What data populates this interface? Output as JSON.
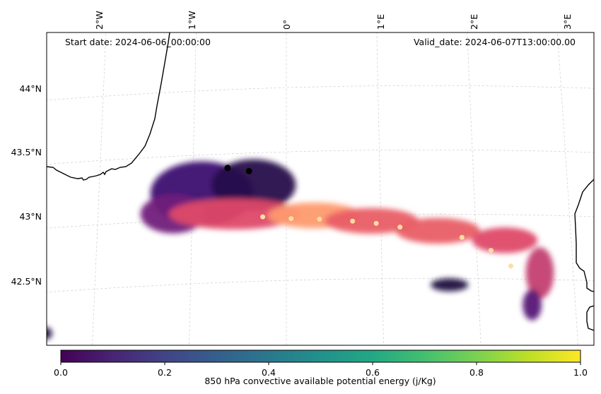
{
  "chart_data": {
    "type": "heatmap",
    "title": "",
    "annotations": {
      "start_date": "Start date: 2024-06-06_00:00:00",
      "valid_date": "Valid_date: 2024-06-07T13:00:00.00"
    },
    "x_ticks": [
      {
        "value": -2,
        "label": "2°W"
      },
      {
        "value": -1,
        "label": "1°W"
      },
      {
        "value": 0,
        "label": "0°"
      },
      {
        "value": 1,
        "label": "1°E"
      },
      {
        "value": 2,
        "label": "2°E"
      },
      {
        "value": 3,
        "label": "3°E"
      }
    ],
    "y_ticks": [
      {
        "value": 44.0,
        "label": "44°N"
      },
      {
        "value": 43.5,
        "label": "43.5°N"
      },
      {
        "value": 43.0,
        "label": "43°N"
      },
      {
        "value": 42.5,
        "label": "42.5°N"
      }
    ],
    "lon_range": [
      -2.6,
      3.2
    ],
    "lat_range": [
      42.0,
      44.4
    ],
    "grid": true,
    "colorbar": {
      "label": "850 hPa convective available potential energy (j/Kg)",
      "ticks": [
        "0.0",
        "0.2",
        "0.4",
        "0.6",
        "0.8",
        "1.0"
      ],
      "range": [
        0.0,
        1.0
      ],
      "colormap": "viridis",
      "placement": "bottom"
    },
    "field_colormap": "magma_r",
    "markers": [
      {
        "lon": -0.63,
        "lat": 43.39,
        "color": "#000000"
      },
      {
        "lon": -0.4,
        "lat": 43.36,
        "color": "#000000"
      }
    ],
    "cape_field_blobs": [
      {
        "lon": -0.9,
        "lat": 43.2,
        "rx": 0.55,
        "ry": 0.25,
        "value": 0.85
      },
      {
        "lon": -0.35,
        "lat": 43.25,
        "rx": 0.45,
        "ry": 0.2,
        "value": 0.9
      },
      {
        "lon": -1.2,
        "lat": 43.05,
        "rx": 0.35,
        "ry": 0.15,
        "value": 0.75
      },
      {
        "lon": -0.55,
        "lat": 43.03,
        "rx": 0.7,
        "ry": 0.12,
        "value": 0.55
      },
      {
        "lon": 0.3,
        "lat": 43.0,
        "rx": 0.5,
        "ry": 0.1,
        "value": 0.35
      },
      {
        "lon": 0.9,
        "lat": 42.95,
        "rx": 0.5,
        "ry": 0.1,
        "value": 0.5
      },
      {
        "lon": 1.6,
        "lat": 42.87,
        "rx": 0.45,
        "ry": 0.1,
        "value": 0.5
      },
      {
        "lon": 2.3,
        "lat": 42.8,
        "rx": 0.35,
        "ry": 0.1,
        "value": 0.55
      },
      {
        "lon": 2.65,
        "lat": 42.55,
        "rx": 0.15,
        "ry": 0.2,
        "value": 0.6
      },
      {
        "lon": 2.55,
        "lat": 42.3,
        "rx": 0.1,
        "ry": 0.12,
        "value": 0.8
      },
      {
        "lon": 1.7,
        "lat": 42.45,
        "rx": 0.2,
        "ry": 0.05,
        "value": 0.92
      },
      {
        "lon": -2.5,
        "lat": 42.18,
        "rx": 0.08,
        "ry": 0.05,
        "value": 0.92
      }
    ],
    "colors": {
      "coastline": "#000000",
      "grid": "#cccccc",
      "marker": "#000000"
    }
  }
}
